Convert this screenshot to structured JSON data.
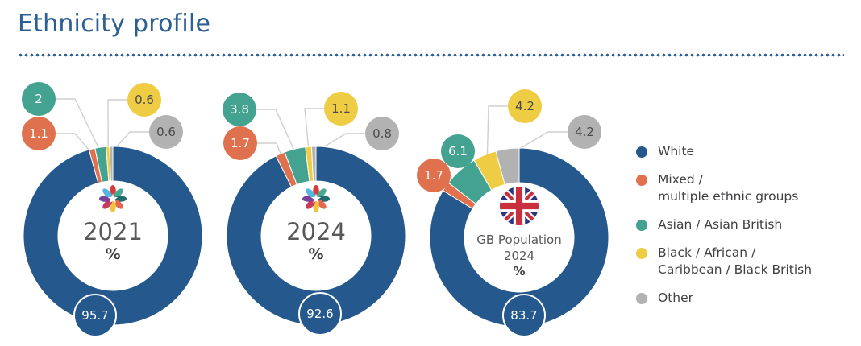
{
  "header": {
    "title": "Ethnicity profile"
  },
  "chart_data": {
    "type": "donut",
    "unit": "%",
    "legend_position": "right",
    "legend": [
      {
        "label": "White",
        "color": "#25598E"
      },
      {
        "label": "Mixed /\nmultiple ethnic groups",
        "color": "#E0714E"
      },
      {
        "label": "Asian / Asian British",
        "color": "#44A390"
      },
      {
        "label": "Black / African /\nCaribbean / Black British",
        "color": "#EECD45"
      },
      {
        "label": "Other",
        "color": "#B2B2B2"
      }
    ],
    "charts": [
      {
        "name": "census-2021",
        "center_label": "2021",
        "center_unit": "%",
        "center_icon": "census-flower-icon",
        "values": [
          95.7,
          1.1,
          2,
          0.6,
          0.6
        ],
        "display": [
          "95.7",
          "1.1",
          "2",
          "0.6",
          "0.6"
        ]
      },
      {
        "name": "census-2024",
        "center_label": "2024",
        "center_unit": "%",
        "center_icon": "census-flower-icon",
        "values": [
          92.6,
          1.7,
          3.8,
          1.1,
          0.8
        ],
        "display": [
          "92.6",
          "1.7",
          "3.8",
          "1.1",
          "0.8"
        ]
      },
      {
        "name": "gb-population-2024",
        "center_label": "GB Population\n2024",
        "center_unit": "%",
        "center_icon": "union-jack-icon",
        "values": [
          83.7,
          1.7,
          6.1,
          4.2,
          4.2
        ],
        "display": [
          "83.7",
          "1.7",
          "6.1",
          "4.2",
          "4.2"
        ]
      }
    ],
    "styles": {
      "leader_line_color": "#cfcfcf",
      "dark_bubble_text": "#4a4a4c",
      "light_bubble_text": "#ffffff",
      "title_color": "#2c6095"
    }
  }
}
